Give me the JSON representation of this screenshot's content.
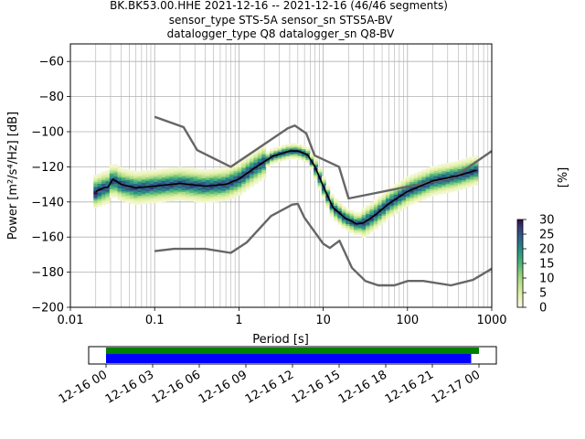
{
  "title": {
    "line1": "BK.BK53.00.HHE   2021-12-16 -- 2021-12-16  (46/46 segments)",
    "line2": "sensor_type STS-5A sensor_sn STS5A-BV",
    "line3": "datalogger_type Q8 datalogger_sn Q8-BV"
  },
  "colors": {
    "pdf_low": "#f4f7cf",
    "pdf_mid": "#6cc07c",
    "pdf_high": "#2d1e4e",
    "noise_model": "#666666",
    "mean_line": "#000000",
    "coverage_data": "#008000",
    "coverage_gaps": "#0000ff",
    "grid": "#b0b0b0"
  },
  "colorbar": {
    "label": "[%]",
    "min": 0,
    "max": 30,
    "ticks": [
      "0",
      "5",
      "10",
      "15",
      "20",
      "25",
      "30"
    ],
    "colormap": "pqlx"
  },
  "coverage": {
    "tick_labels": [
      "12-16 00",
      "12-16 03",
      "12-16 06",
      "12-16 09",
      "12-16 12",
      "12-16 15",
      "12-16 18",
      "12-16 21",
      "12-17 00"
    ],
    "data_range_hours": [
      0,
      24.0
    ],
    "gaps_range_hours": [
      0,
      23.5
    ]
  },
  "chart_data": {
    "type": "heatmap",
    "xlabel": "Period [s]",
    "ylabel": "Power [m²/s⁴/Hz] [dB]",
    "xscale": "log",
    "xlim": [
      0.01,
      1000
    ],
    "ylim": [
      -200,
      -50
    ],
    "xticks": [
      "0.01",
      "0.1",
      "1",
      "10",
      "100",
      "1000"
    ],
    "yticks": [
      "−200",
      "−180",
      "−160",
      "−140",
      "−120",
      "−100",
      "−80",
      "−60"
    ],
    "grid": true,
    "series": [
      {
        "name": "",
        "role": "high-noise-model",
        "x": [
          0.1,
          0.22,
          0.32,
          0.8,
          3.8,
          4.6,
          6.3,
          7.9,
          15.4,
          20,
          354.8,
          1000
        ],
        "y": [
          -91.5,
          -97.4,
          -110.5,
          -120,
          -98,
          -96.5,
          -101,
          -113.5,
          -120,
          -138,
          -126,
          -111
        ]
      },
      {
        "name": "",
        "role": "low-noise-model",
        "x": [
          0.1,
          0.17,
          0.4,
          0.8,
          1.24,
          2.4,
          4.3,
          5.0,
          6.0,
          10.0,
          12.0,
          15.6,
          21.9,
          31.6,
          45,
          70,
          101,
          154,
          328,
          600,
          1000
        ],
        "y": [
          -168,
          -166.7,
          -166.7,
          -169,
          -163,
          -148,
          -141.5,
          -141.1,
          -149,
          -163.8,
          -166.2,
          -162.1,
          -177.5,
          -185,
          -187.5,
          -187.5,
          -185,
          -185,
          -187.5,
          -184.4,
          -178
        ]
      },
      {
        "name": "",
        "role": "mean",
        "x": [
          0.02,
          0.025,
          0.028,
          0.032,
          0.04,
          0.06,
          0.1,
          0.2,
          0.4,
          0.7,
          1.0,
          1.5,
          2.5,
          4.0,
          5.0,
          6.5,
          8.0,
          10.0,
          13.0,
          18.0,
          25.0,
          30.0,
          40.0,
          60.0,
          100.0,
          200.0,
          400.0,
          650.0
        ],
        "y": [
          -134,
          -132,
          -131.5,
          -127,
          -130,
          -132,
          -131,
          -129.5,
          -131,
          -130,
          -127,
          -121,
          -114,
          -111,
          -111,
          -113,
          -120,
          -131,
          -143,
          -149,
          -152.5,
          -152,
          -148,
          -141,
          -134,
          -128,
          -125,
          -122
        ]
      }
    ]
  }
}
